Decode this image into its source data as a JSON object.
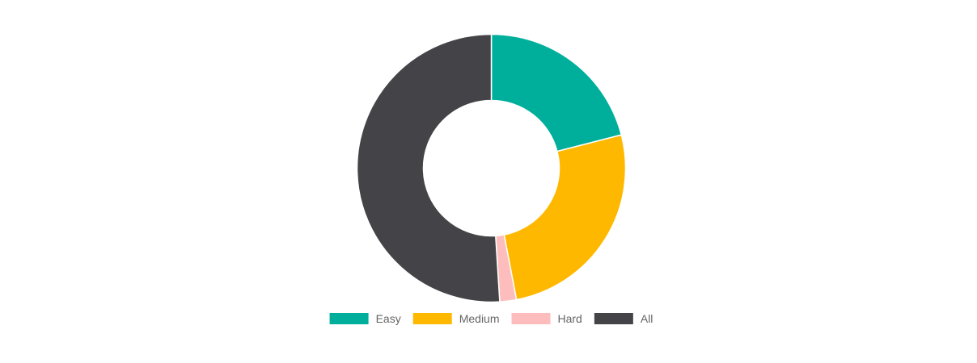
{
  "chart_data": {
    "type": "pie",
    "variant": "doughnut",
    "title": "",
    "categories": [
      "Easy",
      "Medium",
      "Hard",
      "All"
    ],
    "values": [
      21,
      26,
      2,
      51
    ],
    "colors": [
      "#00AF9B",
      "#FFB800",
      "#FEBDBD",
      "#444347"
    ],
    "start_angle_deg": 0,
    "direction": "clockwise",
    "legend_position": "bottom",
    "grid": false
  }
}
